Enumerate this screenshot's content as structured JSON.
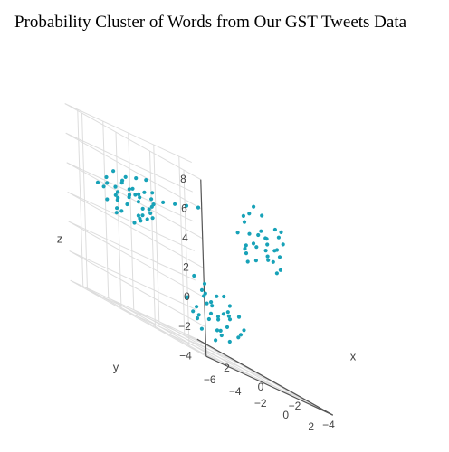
{
  "chart_data": {
    "type": "scatter3d",
    "title": "Probability Cluster of Words from Our GST Tweets Data",
    "xlabel": "x",
    "ylabel": "y",
    "zlabel": "z",
    "x_ticks": [
      "−4",
      "−2",
      "0",
      "2"
    ],
    "y_ticks": [
      "−6",
      "−4",
      "−2",
      "0",
      "2"
    ],
    "z_ticks": [
      "−4",
      "−2",
      "0",
      "2",
      "4",
      "6",
      "8"
    ],
    "xlim": [
      -5,
      3
    ],
    "ylim": [
      -7,
      3
    ],
    "zlim": [
      -4,
      8
    ],
    "grid": true,
    "marker_color": "#17a2b8",
    "clusters": [
      {
        "points": [
          [
            1.5,
            -4.6,
            4.7
          ],
          [
            0.6,
            -3.9,
            5.6
          ],
          [
            1.8,
            -3.2,
            4.1
          ],
          [
            0.2,
            -5.1,
            3.9
          ],
          [
            2.1,
            -4.2,
            3.3
          ],
          [
            1.1,
            -3.6,
            3.0
          ],
          [
            0.4,
            -4.8,
            4.4
          ],
          [
            1.9,
            -5.3,
            4.0
          ],
          [
            0.9,
            -4.1,
            2.7
          ],
          [
            1.4,
            -3.0,
            4.6
          ],
          [
            2.4,
            -4.9,
            3.6
          ],
          [
            0.1,
            -4.3,
            3.5
          ],
          [
            1.7,
            -5.6,
            2.9
          ],
          [
            0.7,
            -3.3,
            4.9
          ],
          [
            2.2,
            -3.8,
            2.5
          ],
          [
            1.2,
            -4.5,
            3.8
          ],
          [
            0.3,
            -5.4,
            4.6
          ],
          [
            1.6,
            -2.9,
            3.4
          ],
          [
            2.6,
            -4.4,
            4.3
          ],
          [
            0.5,
            -3.6,
            3.2
          ],
          [
            1.0,
            -5.0,
            5.1
          ],
          [
            2.0,
            -3.4,
            3.9
          ],
          [
            1.3,
            -4.0,
            2.2
          ],
          [
            0.8,
            -5.2,
            3.3
          ],
          [
            1.8,
            -4.7,
            2.6
          ],
          [
            0.2,
            -3.9,
            4.2
          ],
          [
            2.3,
            -5.5,
            3.7
          ],
          [
            1.5,
            -3.5,
            5.3
          ],
          [
            0.6,
            -4.6,
            2.9
          ],
          [
            1.9,
            -4.1,
            4.5
          ],
          [
            1.1,
            -5.7,
            4.1
          ],
          [
            2.5,
            -3.7,
            3.1
          ],
          [
            0.4,
            -4.0,
            3.7
          ],
          [
            1.6,
            -5.0,
            2.3
          ],
          [
            0.9,
            -3.1,
            3.9
          ],
          [
            2.1,
            -4.5,
            5.0
          ],
          [
            1.4,
            -5.3,
            3.5
          ],
          [
            0.0,
            -4.7,
            3.0
          ],
          [
            1.7,
            -3.8,
            4.3
          ],
          [
            0.7,
            -4.3,
            2.6
          ]
        ]
      },
      {
        "points": [
          [
            -3.3,
            0.3,
            5.0
          ],
          [
            -2.6,
            -0.4,
            6.2
          ],
          [
            -3.8,
            0.9,
            6.8
          ],
          [
            -2.2,
            0.2,
            4.6
          ],
          [
            -3.1,
            -0.7,
            5.6
          ],
          [
            -4.0,
            0.5,
            4.2
          ],
          [
            -2.8,
            1.1,
            5.4
          ],
          [
            -3.5,
            -0.2,
            7.3
          ],
          [
            -2.4,
            0.7,
            3.9
          ],
          [
            -3.9,
            -0.5,
            5.9
          ],
          [
            -2.9,
            0.1,
            4.9
          ],
          [
            -3.6,
            1.3,
            6.0
          ],
          [
            -2.1,
            -0.3,
            5.2
          ],
          [
            -3.2,
            0.6,
            4.4
          ],
          [
            -4.2,
            0.0,
            5.5
          ],
          [
            -2.7,
            -0.6,
            6.6
          ],
          [
            -3.4,
            1.0,
            3.8
          ],
          [
            -2.3,
            0.4,
            6.9
          ],
          [
            -3.7,
            -0.1,
            4.7
          ],
          [
            -3.0,
            0.8,
            5.8
          ],
          [
            -2.5,
            -0.2,
            4.1
          ],
          [
            -3.3,
            1.4,
            5.0
          ],
          [
            -4.1,
            0.3,
            6.4
          ],
          [
            -2.8,
            -0.5,
            3.6
          ],
          [
            -3.6,
            0.6,
            5.3
          ],
          [
            -2.2,
            1.2,
            5.7
          ],
          [
            -3.1,
            -0.3,
            7.6
          ],
          [
            -3.8,
            0.2,
            4.5
          ],
          [
            -2.6,
            0.9,
            6.1
          ],
          [
            -3.4,
            -0.8,
            5.1
          ],
          [
            -2.0,
            -4.2,
            5.4
          ],
          [
            -1.6,
            -4.6,
            5.1
          ],
          [
            -1.2,
            -5.0,
            4.8
          ],
          [
            -0.8,
            -5.4,
            4.6
          ],
          [
            -0.4,
            -5.8,
            4.3
          ],
          [
            -0.1,
            -6.2,
            4.1
          ],
          [
            0.3,
            -6.6,
            3.9
          ],
          [
            -2.4,
            -3.8,
            5.7
          ],
          [
            -1.9,
            0.5,
            4.3
          ],
          [
            -3.0,
            1.5,
            6.7
          ]
        ]
      },
      {
        "points": [
          [
            1.3,
            1.9,
            -1.6
          ],
          [
            0.8,
            2.6,
            -0.9
          ],
          [
            2.0,
            1.4,
            -2.1
          ],
          [
            0.4,
            2.2,
            -1.3
          ],
          [
            1.7,
            2.9,
            -2.6
          ],
          [
            1.1,
            1.1,
            -0.6
          ],
          [
            0.2,
            1.7,
            -1.9
          ],
          [
            1.9,
            2.4,
            -1.1
          ],
          [
            0.6,
            3.1,
            -2.3
          ],
          [
            1.5,
            1.5,
            -0.3
          ],
          [
            2.3,
            2.1,
            -1.7
          ],
          [
            0.9,
            2.8,
            -2.9
          ],
          [
            0.0,
            2.4,
            -0.8
          ],
          [
            1.6,
            1.2,
            -2.4
          ],
          [
            2.2,
            2.7,
            -0.5
          ],
          [
            0.5,
            1.4,
            -1.5
          ],
          [
            1.2,
            3.2,
            -1.2
          ],
          [
            1.8,
            1.8,
            -3.0
          ],
          [
            0.3,
            2.9,
            -2.0
          ],
          [
            1.0,
            2.0,
            -0.2
          ],
          [
            2.5,
            1.6,
            -1.4
          ],
          [
            0.7,
            1.9,
            -2.7
          ],
          [
            1.4,
            2.6,
            -1.8
          ],
          [
            2.1,
            3.0,
            -0.9
          ],
          [
            0.1,
            1.3,
            -1.1
          ],
          [
            1.3,
            2.2,
            -3.3
          ],
          [
            1.8,
            1.3,
            0.4
          ],
          [
            0.6,
            2.5,
            -0.4
          ],
          [
            2.4,
            2.4,
            -2.2
          ],
          [
            1.0,
            1.6,
            -1.0
          ],
          [
            1.5,
            2.9,
            -2.5
          ],
          [
            0.4,
            3.3,
            -1.6
          ],
          [
            2.0,
            1.0,
            -1.3
          ],
          [
            0.9,
            1.2,
            -2.0
          ],
          [
            1.7,
            2.0,
            0.2
          ],
          [
            1.1,
            2.7,
            0.0
          ]
        ]
      }
    ]
  }
}
